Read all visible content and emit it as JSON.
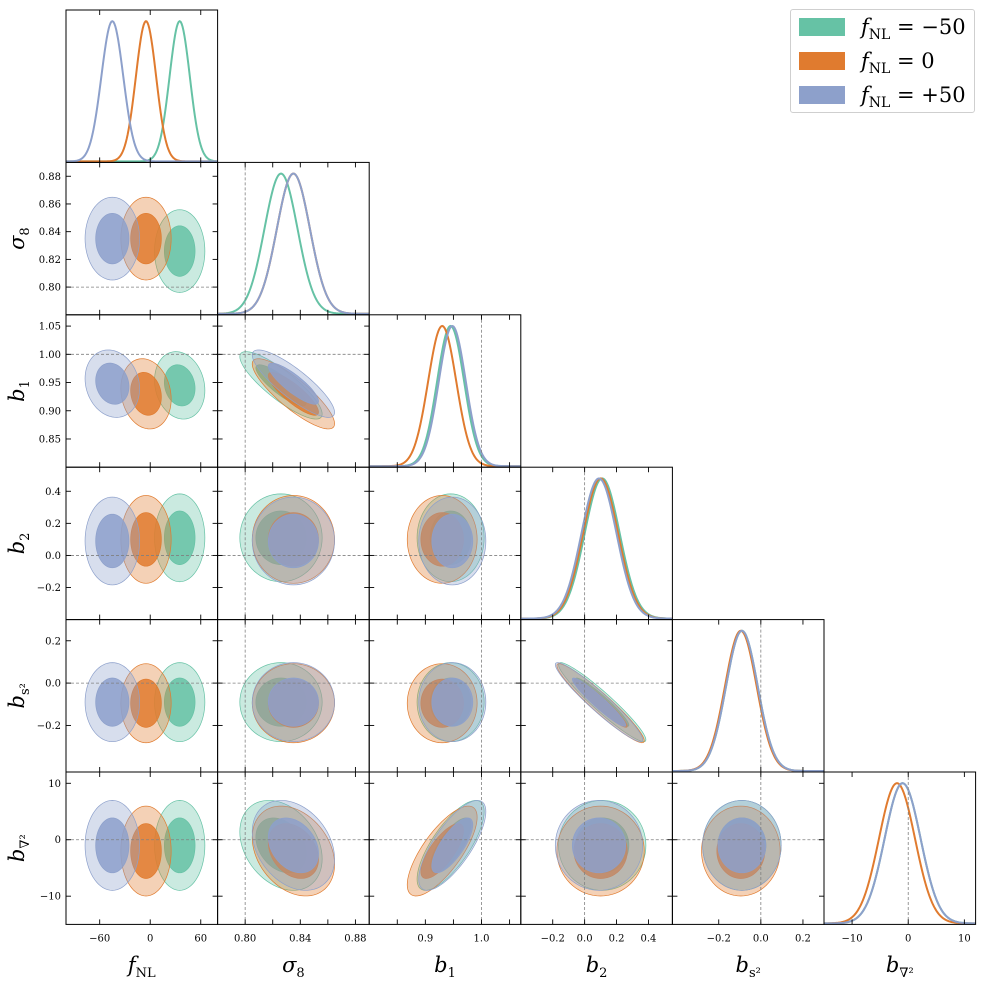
{
  "colors": {
    "fNL_m50": "#66c2a5",
    "fNL_0": "#e07b2f",
    "fNL_p50": "#8da0cb",
    "ref_line": "#808080"
  },
  "legend": [
    {
      "sym": "f",
      "sub": "NL",
      "rest": " = −50",
      "color": "#66c2a5"
    },
    {
      "sym": "f",
      "sub": "NL",
      "rest": " = 0",
      "color": "#e07b2f"
    },
    {
      "sym": "f",
      "sub": "NL",
      "rest": " = +50",
      "color": "#8da0cb"
    }
  ],
  "chart_data": {
    "type": "corner",
    "parameters": [
      {
        "key": "fNL",
        "sym": "f",
        "sub": "NL",
        "range": [
          -100,
          80
        ],
        "ticks": [
          -60,
          0,
          60
        ],
        "tick_labels": [
          "−60",
          "0",
          "60"
        ]
      },
      {
        "key": "sigma8",
        "sym": "σ",
        "sub": "8",
        "range": [
          0.78,
          0.89
        ],
        "ticks": [
          0.8,
          0.82,
          0.84,
          0.86,
          0.88
        ],
        "tick_labels": [
          "0.80",
          "0.82",
          "0.84",
          "0.86",
          "0.88"
        ],
        "x_tick_labels": [
          "0.80",
          "0.84",
          "0.88"
        ],
        "reference": 0.8
      },
      {
        "key": "b1",
        "sym": "b",
        "sub": "1",
        "range": [
          0.8,
          1.07
        ],
        "ticks": [
          0.85,
          0.9,
          0.95,
          1.0,
          1.05
        ],
        "tick_labels": [
          "0.85",
          "0.90",
          "0.95",
          "1.00",
          "1.05"
        ],
        "x_tick_labels": [
          "0.9",
          "1.0"
        ],
        "reference": 1.0
      },
      {
        "key": "b2",
        "sym": "b",
        "sub": "2",
        "range": [
          -0.4,
          0.55
        ],
        "ticks": [
          -0.2,
          0.0,
          0.2,
          0.4
        ],
        "tick_labels": [
          "−0.2",
          "0.0",
          "0.2",
          "0.4"
        ],
        "reference": 0.0
      },
      {
        "key": "bs2",
        "sym": "b",
        "sub": "s²",
        "range": [
          -0.42,
          0.3
        ],
        "ticks": [
          -0.2,
          0.0,
          0.2
        ],
        "tick_labels": [
          "−0.2",
          "0.0",
          "0.2"
        ],
        "reference": 0.0
      },
      {
        "key": "bnabla2",
        "sym": "b",
        "sub": "∇²",
        "range": [
          -15,
          12
        ],
        "ticks": [
          -10,
          0,
          10
        ],
        "tick_labels": [
          "−10",
          "0",
          "10"
        ],
        "reference": 0
      }
    ],
    "series": [
      {
        "name": "fNL = −50",
        "color": "#66c2a5",
        "mean": [
          35,
          0.826,
          0.945,
          0.11,
          -0.09,
          -1.0
        ],
        "sigma": [
          12,
          0.012,
          0.024,
          0.11,
          0.075,
          3.2
        ]
      },
      {
        "name": "fNL = 0",
        "color": "#e07b2f",
        "mean": [
          -5,
          0.835,
          0.93,
          0.1,
          -0.095,
          -2.0
        ],
        "sigma": [
          12,
          0.012,
          0.025,
          0.11,
          0.075,
          3.2
        ]
      },
      {
        "name": "fNL = +50",
        "color": "#8da0cb",
        "mean": [
          -45,
          0.835,
          0.948,
          0.09,
          -0.09,
          -1.0
        ],
        "sigma": [
          13,
          0.012,
          0.024,
          0.11,
          0.075,
          3.2
        ]
      }
    ],
    "correlations": [
      {
        "i": 2,
        "j": 1,
        "rho": -0.85
      },
      {
        "i": 4,
        "j": 3,
        "rho": -0.95
      },
      {
        "i": 5,
        "j": 2,
        "rho": 0.75
      },
      {
        "i": 5,
        "j": 1,
        "rho": -0.3
      },
      {
        "i": 2,
        "j": 0,
        "rho": -0.15
      }
    ]
  }
}
